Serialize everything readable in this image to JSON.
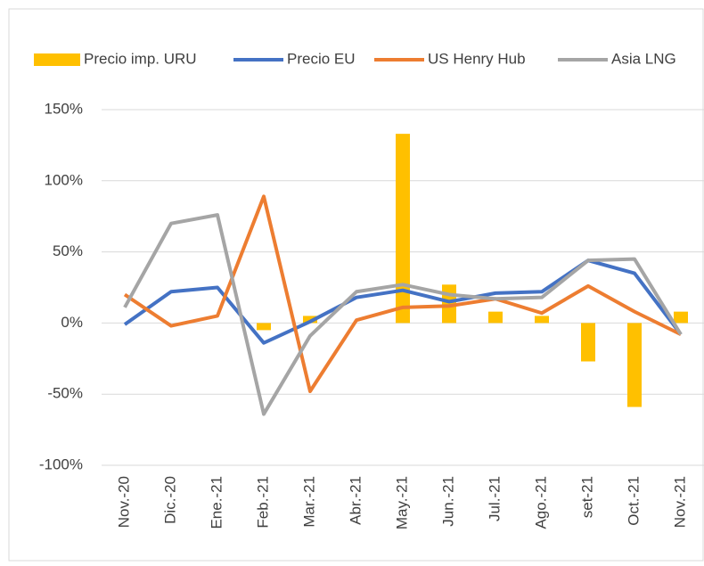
{
  "chart_data": {
    "type": "combo",
    "categories": [
      "Nov.-20",
      "Dic.-20",
      "Ene.-21",
      "Feb.-21",
      "Mar.-21",
      "Abr.-21",
      "May.-21",
      "Jun.-21",
      "Jul.-21",
      "Ago.-21",
      "set-21",
      "Oct.-21",
      "Nov.-21"
    ],
    "series": [
      {
        "name": "Precio imp. URU",
        "type": "bar",
        "color": "#FFC000",
        "values": [
          0,
          0,
          0,
          -5,
          5,
          0,
          133,
          27,
          8,
          5,
          -27,
          -59,
          8
        ]
      },
      {
        "name": "Precio EU",
        "type": "line",
        "color": "#4472C4",
        "values": [
          -1,
          22,
          25,
          -14,
          1,
          18,
          23,
          15,
          21,
          22,
          44,
          35,
          -8
        ]
      },
      {
        "name": "US Henry Hub",
        "type": "line",
        "color": "#ED7D31",
        "values": [
          20,
          -2,
          5,
          89,
          -48,
          2,
          11,
          12,
          17,
          7,
          26,
          8,
          -8
        ]
      },
      {
        "name": "Asia LNG",
        "type": "line",
        "color": "#A5A5A5",
        "values": [
          11,
          70,
          76,
          -64,
          -9,
          22,
          27,
          20,
          17,
          18,
          44,
          45,
          -8
        ]
      }
    ],
    "ylim": [
      -100,
      150
    ],
    "yticks": [
      {
        "value": -100,
        "label": "-100%"
      },
      {
        "value": -50,
        "label": "-50%"
      },
      {
        "value": 0,
        "label": "0%"
      },
      {
        "value": 50,
        "label": "50%"
      },
      {
        "value": 100,
        "label": "100%"
      },
      {
        "value": 150,
        "label": "150%"
      }
    ],
    "grid": true,
    "legend": "top"
  }
}
